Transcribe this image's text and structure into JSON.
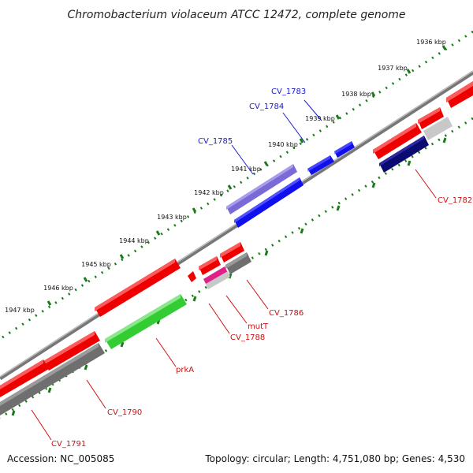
{
  "title": "Chromobacterium violaceum ATCC 12472, complete genome",
  "footer": {
    "accession": "Accession: NC_005085",
    "summary": "Topology: circular; Length: 4,751,080 bp; Genes: 4,530"
  },
  "colors": {
    "backbone": "#777777",
    "tick": "#1a7a1a",
    "forward_label": "#1a1ad0",
    "reverse_label": "#cc1111",
    "red": "#ee0000",
    "blue": "#1010ee",
    "purple": "#7a6ad6",
    "green": "#33cc33",
    "grey": "#6f6f6f",
    "lightgrey": "#c8c8c8",
    "navy": "#0a0a70",
    "magenta": "#e0208a"
  },
  "ticks": [
    {
      "label": "1936 kbp"
    },
    {
      "label": "1937 kbp"
    },
    {
      "label": "1938 kbp"
    },
    {
      "label": "1939 kbp"
    },
    {
      "label": "1940 kbp"
    },
    {
      "label": "1941 kbp"
    },
    {
      "label": "1942 kbp"
    },
    {
      "label": "1943 kbp"
    },
    {
      "label": "1944 kbp"
    },
    {
      "label": "1945 kbp"
    },
    {
      "label": "1946 kbp"
    },
    {
      "label": "1947 kbp"
    }
  ],
  "gene_labels": {
    "cv1783": "CV_1783",
    "cv1784": "CV_1784",
    "cv1785": "CV_1785",
    "cv1782": "CV_1782",
    "cv1786": "CV_1786",
    "mutT": "mutT",
    "cv1788": "CV_1788",
    "prkA": "prkA",
    "cv1790": "CV_1790",
    "cv1791": "CV_1791"
  }
}
